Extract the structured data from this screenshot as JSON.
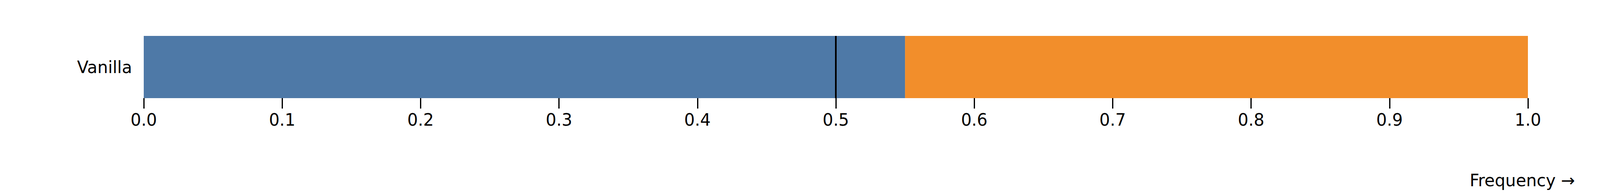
{
  "chart_data": {
    "type": "bar",
    "orientation": "horizontal",
    "stacked": true,
    "categories": [
      "Vanilla"
    ],
    "series": [
      {
        "color": "#4e79a7",
        "values": [
          0.55
        ]
      },
      {
        "color": "#f28e2b",
        "values": [
          0.45
        ]
      }
    ],
    "x_label": "Frequency →",
    "xlim": [
      0,
      1
    ],
    "xticks": [
      {
        "value": 0,
        "label": "0.0"
      },
      0.1,
      0.2,
      0.3,
      0.4,
      0.5,
      0.6,
      0.7,
      0.8,
      0.9,
      {
        "value": 1,
        "label": "1.0"
      }
    ],
    "vline": 0.5,
    "grid": false
  }
}
